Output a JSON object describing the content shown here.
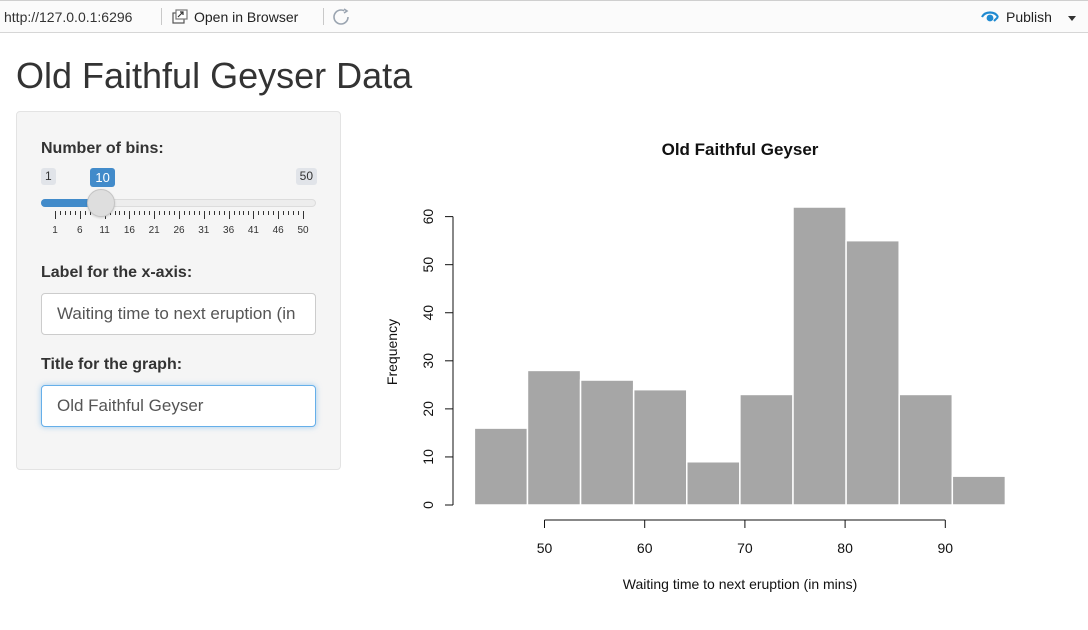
{
  "toolbar": {
    "url": "http://127.0.0.1:6296",
    "open_in_browser": "Open in Browser",
    "publish": "Publish"
  },
  "page": {
    "title": "Old Faithful Geyser Data"
  },
  "sidebar": {
    "bins_label": "Number of bins:",
    "bins_min": "1",
    "bins_max": "50",
    "bins_value": "10",
    "bins_value_fraction": 0.1837,
    "bins_ticks": [
      "1",
      "6",
      "11",
      "16",
      "21",
      "26",
      "31",
      "36",
      "41",
      "46",
      "50"
    ],
    "xlabel_label": "Label for the x-axis:",
    "xlabel_value": "Waiting time to next eruption (in mins)",
    "title_label": "Title for the graph:",
    "title_value": "Old Faithful Geyser"
  },
  "chart_data": {
    "type": "bar",
    "title": "Old Faithful Geyser",
    "xlabel": "Waiting time to next eruption (in mins)",
    "ylabel": "Frequency",
    "bin_edges": [
      43,
      48.3,
      53.6,
      58.9,
      64.2,
      69.5,
      74.8,
      80.1,
      85.4,
      90.7,
      96
    ],
    "values": [
      16,
      28,
      26,
      24,
      9,
      23,
      62,
      55,
      23,
      6
    ],
    "xticks": [
      "50",
      "60",
      "70",
      "80",
      "90"
    ],
    "xtick_values": [
      50,
      60,
      70,
      80,
      90
    ],
    "yticks": [
      "0",
      "10",
      "20",
      "30",
      "40",
      "50",
      "60"
    ],
    "ylim": [
      0,
      62
    ],
    "bar_color": "#a6a6a6",
    "grid": false
  },
  "colors": {
    "accent": "#428bca",
    "focus": "#66afe9"
  }
}
